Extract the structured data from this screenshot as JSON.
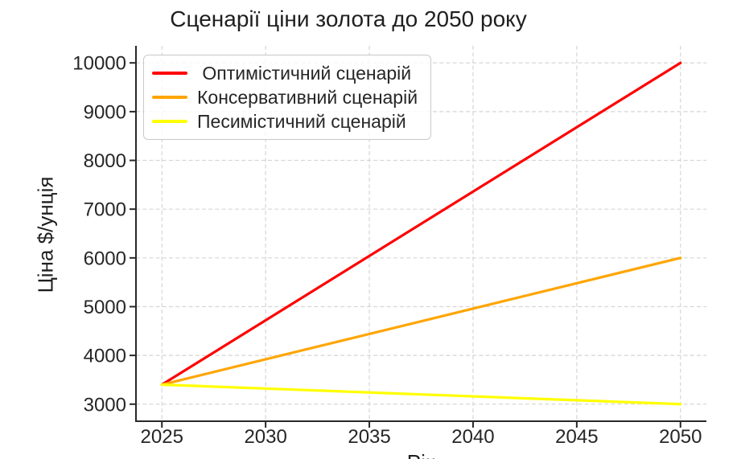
{
  "chart_data": {
    "type": "line",
    "title": "Сценарії ціни золота до 2050 року",
    "xlabel": "Рік",
    "ylabel": "Ціна $/унція",
    "x": [
      2025,
      2050
    ],
    "series": [
      {
        "name": " Оптимістичний сценарій",
        "color": "#ff0000",
        "values": [
          3400,
          10000
        ]
      },
      {
        "name": "Консервативний сценарій",
        "color": "#ffa500",
        "values": [
          3400,
          6000
        ]
      },
      {
        "name": "Песимістичний сценарій",
        "color": "#ffff00",
        "values": [
          3400,
          3000
        ]
      }
    ],
    "xticks": [
      2025,
      2030,
      2035,
      2040,
      2045,
      2050
    ],
    "yticks": [
      3000,
      4000,
      5000,
      6000,
      7000,
      8000,
      9000,
      10000
    ],
    "xlim": [
      2023.75,
      2051.25
    ],
    "ylim": [
      2650,
      10350
    ],
    "grid": true,
    "grid_style": "dashed",
    "legend_position": "upper-left",
    "colors": {
      "grid": "#d6d6d6",
      "axis": "#282828",
      "text": "#262626",
      "background": "#ffffff"
    }
  }
}
